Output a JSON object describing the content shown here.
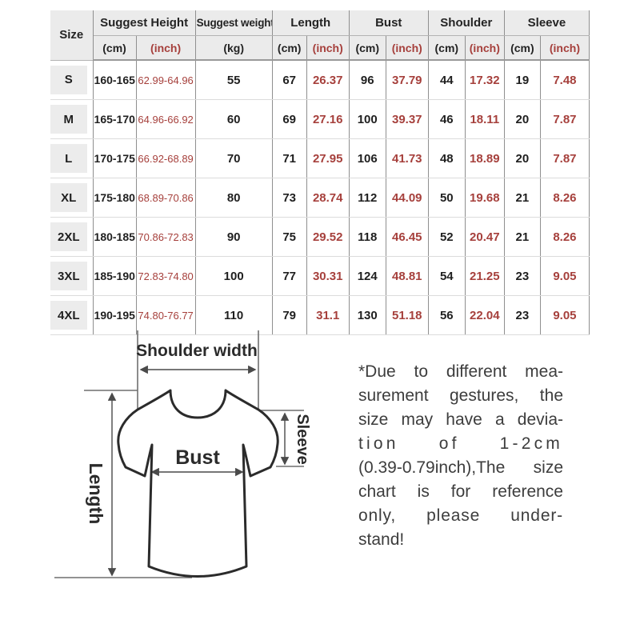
{
  "table": {
    "header": {
      "size": "Size",
      "groups": [
        {
          "label": "Suggest Height",
          "sub": [
            "(cm)",
            "(inch)"
          ]
        },
        {
          "label": "Suggest weight",
          "sub": [
            "(kg)"
          ]
        },
        {
          "label": "Length",
          "sub": [
            "(cm)",
            "(inch)"
          ]
        },
        {
          "label": "Bust",
          "sub": [
            "(cm)",
            "(inch)"
          ]
        },
        {
          "label": "Shoulder",
          "sub": [
            "(cm)",
            "(inch)"
          ]
        },
        {
          "label": "Sleeve",
          "sub": [
            "(cm)",
            "(inch)"
          ]
        }
      ]
    },
    "rows": [
      {
        "size": "S",
        "height_cm": "160-165",
        "height_inch": "62.99-64.96",
        "weight_kg": "55",
        "length_cm": "67",
        "length_inch": "26.37",
        "bust_cm": "96",
        "bust_inch": "37.79",
        "shoulder_cm": "44",
        "shoulder_inch": "17.32",
        "sleeve_cm": "19",
        "sleeve_inch": "7.48"
      },
      {
        "size": "M",
        "height_cm": "165-170",
        "height_inch": "64.96-66.92",
        "weight_kg": "60",
        "length_cm": "69",
        "length_inch": "27.16",
        "bust_cm": "100",
        "bust_inch": "39.37",
        "shoulder_cm": "46",
        "shoulder_inch": "18.11",
        "sleeve_cm": "20",
        "sleeve_inch": "7.87"
      },
      {
        "size": "L",
        "height_cm": "170-175",
        "height_inch": "66.92-68.89",
        "weight_kg": "70",
        "length_cm": "71",
        "length_inch": "27.95",
        "bust_cm": "106",
        "bust_inch": "41.73",
        "shoulder_cm": "48",
        "shoulder_inch": "18.89",
        "sleeve_cm": "20",
        "sleeve_inch": "7.87"
      },
      {
        "size": "XL",
        "height_cm": "175-180",
        "height_inch": "68.89-70.86",
        "weight_kg": "80",
        "length_cm": "73",
        "length_inch": "28.74",
        "bust_cm": "112",
        "bust_inch": "44.09",
        "shoulder_cm": "50",
        "shoulder_inch": "19.68",
        "sleeve_cm": "21",
        "sleeve_inch": "8.26"
      },
      {
        "size": "2XL",
        "height_cm": "180-185",
        "height_inch": "70.86-72.83",
        "weight_kg": "90",
        "length_cm": "75",
        "length_inch": "29.52",
        "bust_cm": "118",
        "bust_inch": "46.45",
        "shoulder_cm": "52",
        "shoulder_inch": "20.47",
        "sleeve_cm": "21",
        "sleeve_inch": "8.26"
      },
      {
        "size": "3XL",
        "height_cm": "185-190",
        "height_inch": "72.83-74.80",
        "weight_kg": "100",
        "length_cm": "77",
        "length_inch": "30.31",
        "bust_cm": "124",
        "bust_inch": "48.81",
        "shoulder_cm": "54",
        "shoulder_inch": "21.25",
        "sleeve_cm": "23",
        "sleeve_inch": "9.05"
      },
      {
        "size": "4XL",
        "height_cm": "190-195",
        "height_inch": "74.80-76.77",
        "weight_kg": "110",
        "length_cm": "79",
        "length_inch": "31.1",
        "bust_cm": "130",
        "bust_inch": "51.18",
        "shoulder_cm": "56",
        "shoulder_inch": "22.04",
        "sleeve_cm": "23",
        "sleeve_inch": "9.05"
      }
    ]
  },
  "diagram": {
    "labels": {
      "shoulder_width": "Shoulder width",
      "bust": "Bust",
      "sleeve": "Sleeve",
      "length": "Length"
    }
  },
  "note": {
    "lines": [
      "*Due to different mea-",
      "surement gestures, the",
      "size may have a devia-",
      "tion of 1-2cm",
      "(0.39-0.79inch),The size",
      "chart is for reference",
      "only, please under-",
      "stand!"
    ]
  },
  "colors": {
    "inch_red": "#a6403c",
    "text_ink": "#1f1f1f",
    "note_ink": "#3d3d3d",
    "header_bg": "#ebebeb"
  }
}
